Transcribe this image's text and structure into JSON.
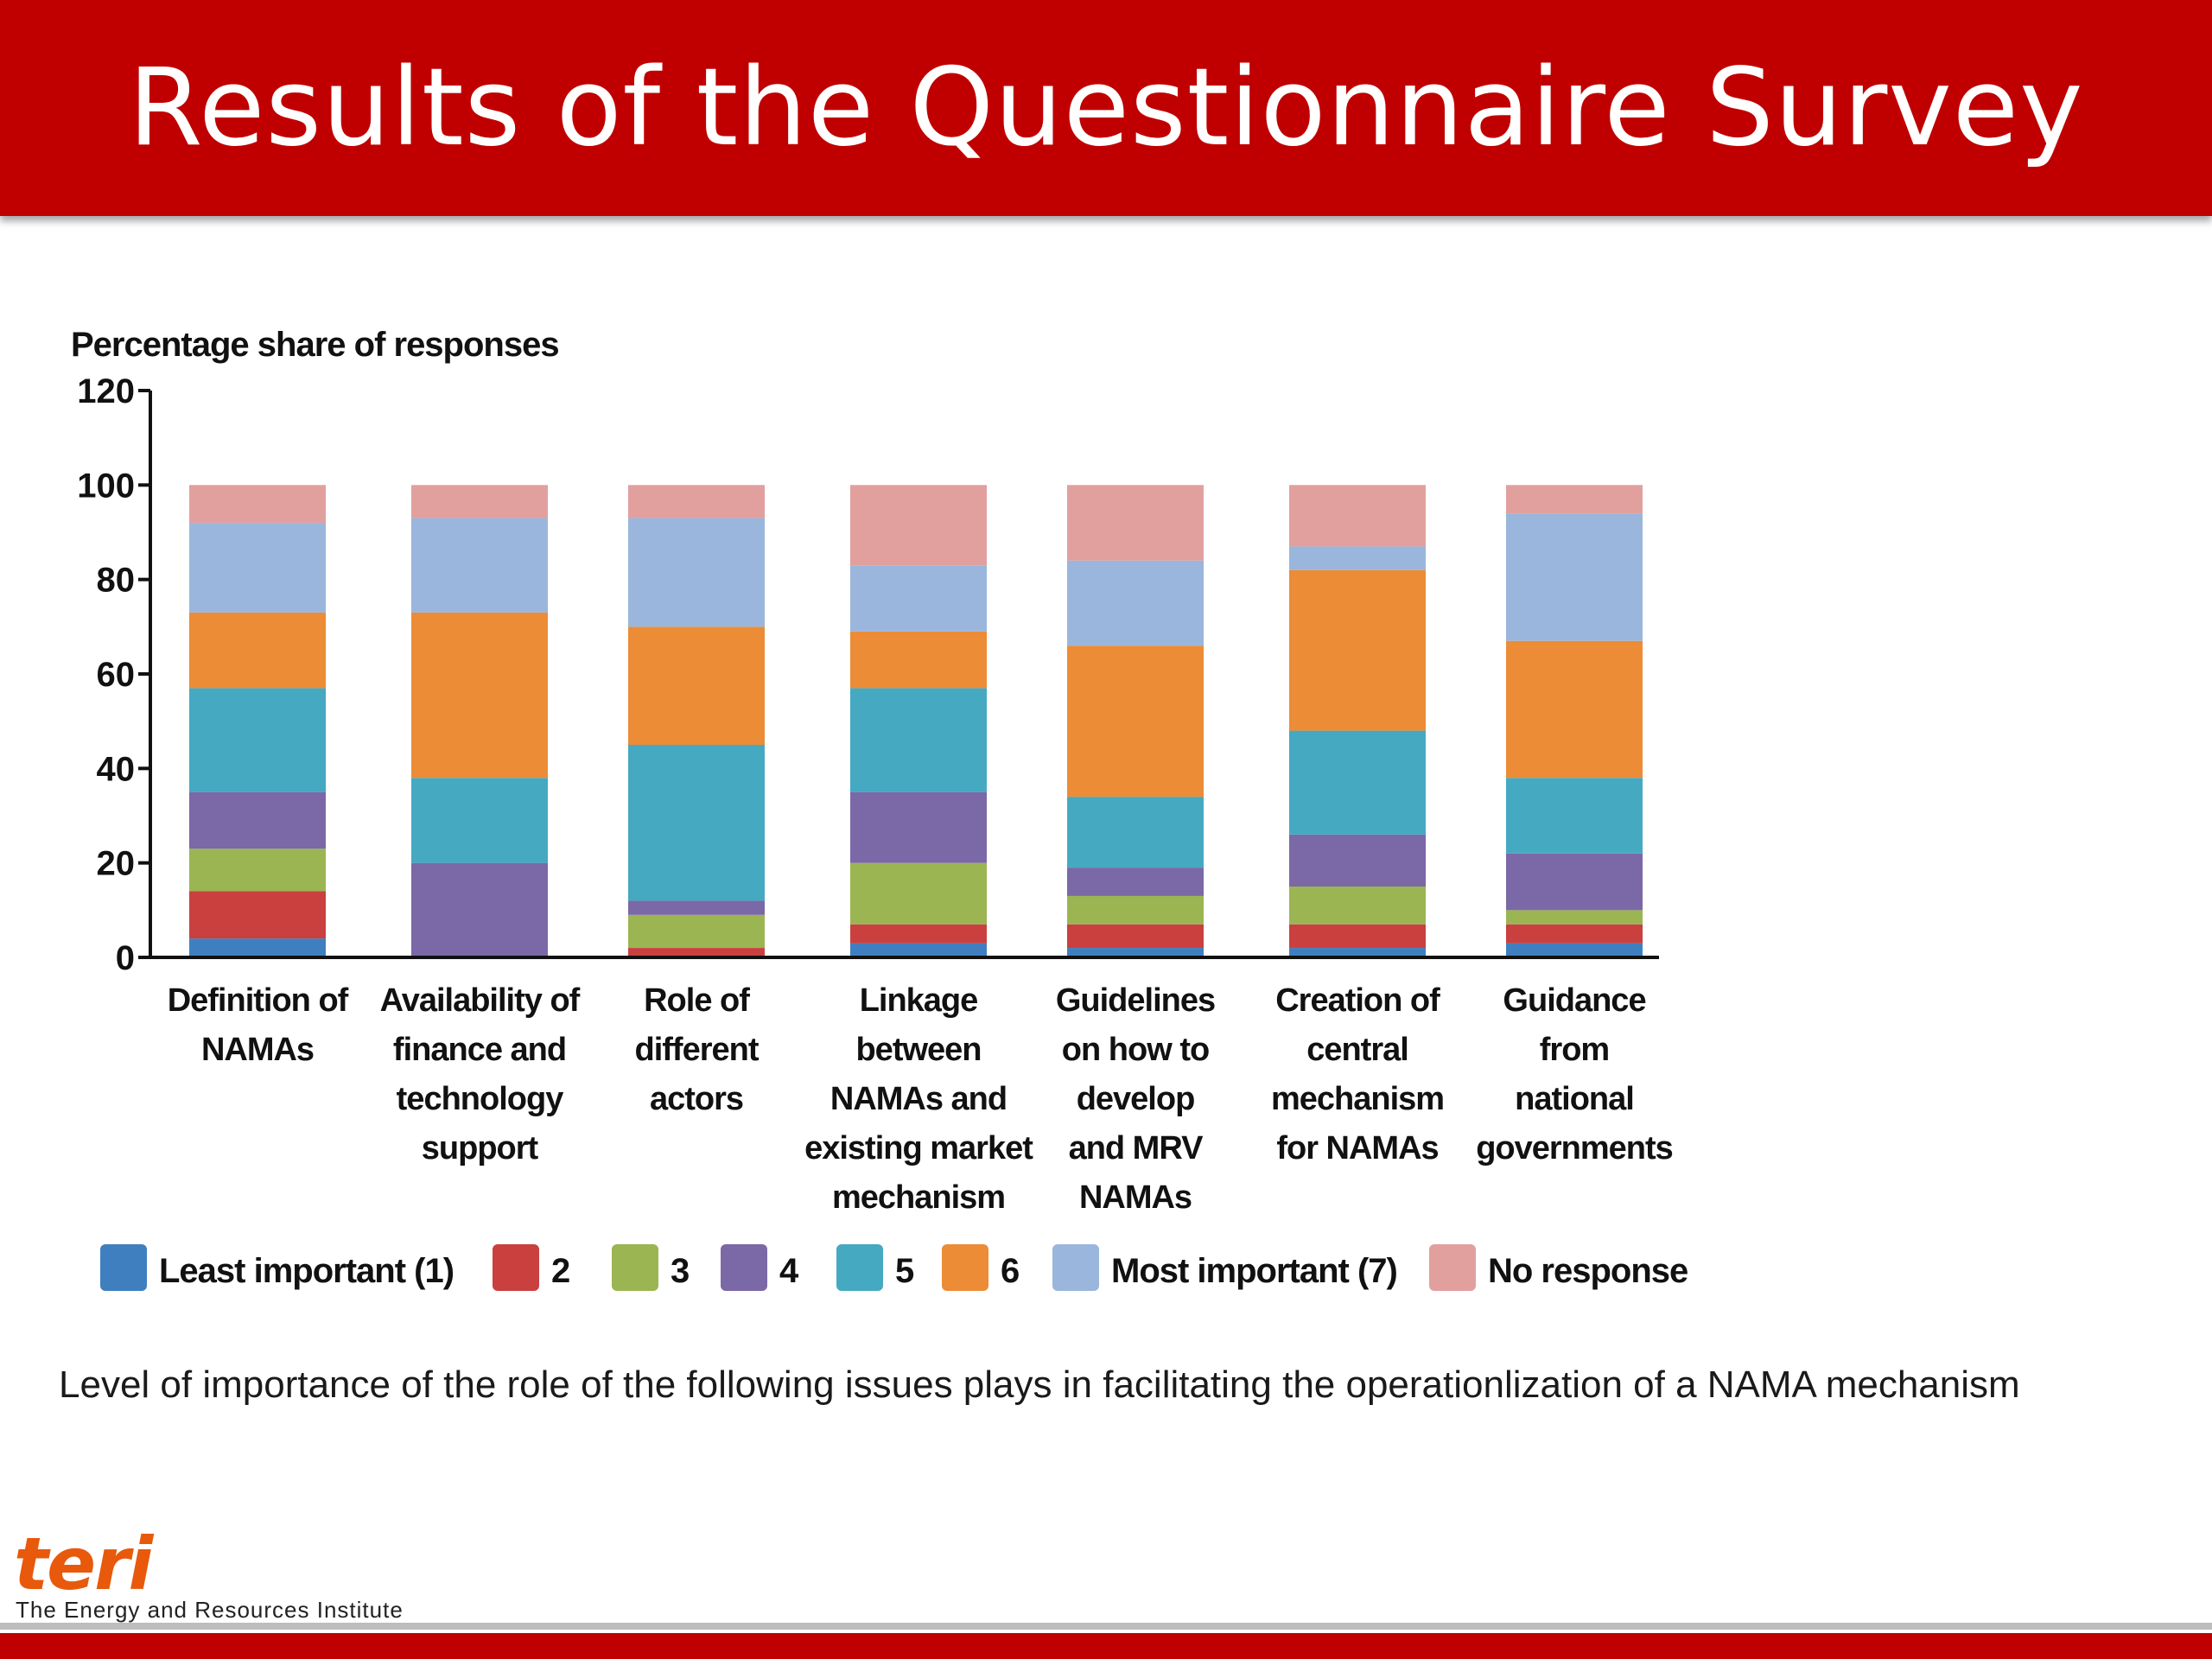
{
  "slide": {
    "title": "Results of the Questionnaire Survey",
    "caption": "Level of importance of the role of the following issues plays in facilitating the operationlization of a NAMA mechanism",
    "logo_mark": "teri",
    "logo_sub": "The Energy and Resources Institute"
  },
  "chart_data": {
    "type": "bar",
    "stacked": true,
    "ylabel": "Percentage share of responses",
    "ylim": [
      0,
      120
    ],
    "yticks": [
      0,
      20,
      40,
      60,
      80,
      100,
      120
    ],
    "categories": [
      [
        "Definition of",
        "NAMAs"
      ],
      [
        "Availability of",
        "finance and",
        "technology",
        "support"
      ],
      [
        "Role of",
        "different",
        "actors"
      ],
      [
        "Linkage",
        "between",
        "NAMAs and",
        "existing market",
        "mechanism"
      ],
      [
        "Guidelines",
        "on how to",
        "develop",
        "and MRV",
        "NAMAs"
      ],
      [
        "Creation of",
        "central",
        "mechanism",
        "for NAMAs"
      ],
      [
        "Guidance",
        "from",
        "national",
        "governments"
      ]
    ],
    "series": [
      {
        "name": "Least important (1)",
        "color": "#3f7fbf",
        "values": [
          4,
          0,
          0,
          3,
          2,
          2,
          3
        ]
      },
      {
        "name": "2",
        "color": "#c9403f",
        "values": [
          10,
          0,
          2,
          4,
          5,
          5,
          4
        ]
      },
      {
        "name": "3",
        "color": "#9bb552",
        "values": [
          9,
          0,
          7,
          13,
          6,
          8,
          3
        ]
      },
      {
        "name": "4",
        "color": "#7b68a6",
        "values": [
          12,
          20,
          3,
          15,
          6,
          11,
          12
        ]
      },
      {
        "name": "5",
        "color": "#45a9c2",
        "values": [
          22,
          18,
          33,
          22,
          15,
          22,
          16
        ]
      },
      {
        "name": "6",
        "color": "#ec8c37",
        "values": [
          16,
          35,
          25,
          12,
          32,
          34,
          29
        ]
      },
      {
        "name": "Most important (7)",
        "color": "#9ab6dc",
        "values": [
          19,
          20,
          23,
          14,
          18,
          5,
          27
        ]
      },
      {
        "name": "No response",
        "color": "#e1a09e",
        "values": [
          8,
          7,
          7,
          17,
          16,
          13,
          6
        ]
      }
    ],
    "legend_position": "bottom",
    "grid": false
  }
}
